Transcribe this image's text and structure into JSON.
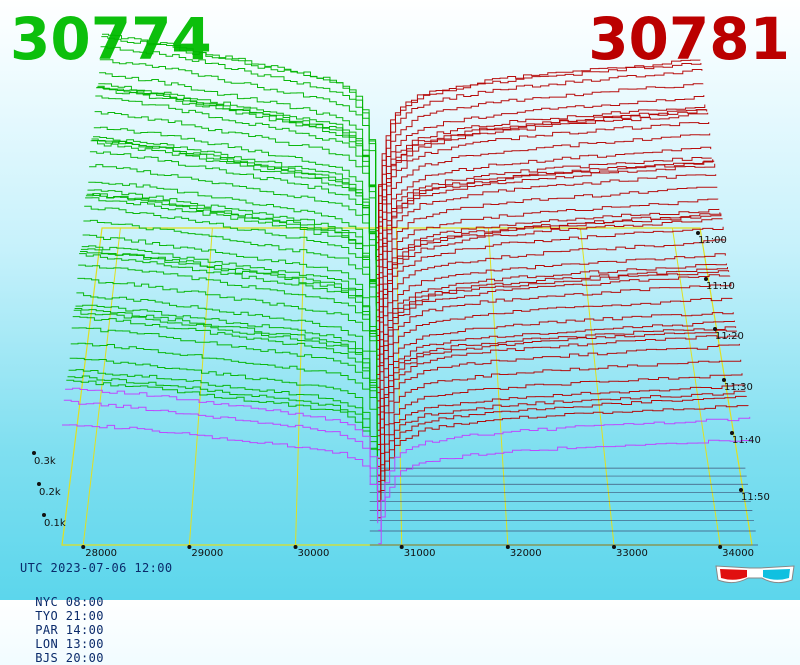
{
  "bid_price": "30774",
  "ask_price": "30781",
  "footer": {
    "utc": "UTC 2023-07-06 12:00",
    "timezones": [
      "NYC 08:00",
      "TYO 21:00",
      "PAR 14:00",
      "LON 13:00",
      "BJS 20:00"
    ]
  },
  "colors": {
    "bid": "#00b400",
    "ask": "#b40000",
    "grid": "#e0e020",
    "baseline": "#30305a",
    "front_bid": "#c040ff"
  },
  "icons": [
    "3d-glasses-icon"
  ],
  "chart_data": {
    "type": "area",
    "view": "3d-depth-chart",
    "x_axis": {
      "ticks": [
        28000,
        29000,
        30000,
        31000,
        32000,
        33000,
        34000
      ],
      "tick_labels": [
        "28000",
        "29000",
        "30000",
        "31000",
        "32000",
        "33000",
        "34000"
      ],
      "range": [
        27800,
        34300
      ]
    },
    "depth_axis": {
      "ticks": [
        100,
        200,
        300
      ],
      "tick_labels": [
        "0.1k",
        "0.2k",
        "0.3k"
      ]
    },
    "time_axis": {
      "ticks": [
        "11:00",
        "11:10",
        "11:20",
        "11:30",
        "11:40",
        "11:50"
      ]
    },
    "mid_price": 30777,
    "series": [
      {
        "side": "bid",
        "price_points": [
          27800,
          28500,
          29000,
          29500,
          30000,
          30400,
          30600,
          30700,
          30750,
          30774
        ],
        "cumulative_depth": [
          300,
          285,
          270,
          255,
          240,
          225,
          200,
          140,
          60,
          0
        ]
      },
      {
        "side": "ask",
        "price_points": [
          30781,
          30800,
          30850,
          30950,
          31200,
          31600,
          32000,
          32600,
          33200,
          33800,
          34300
        ],
        "cumulative_depth": [
          0,
          60,
          120,
          175,
          205,
          220,
          230,
          240,
          248,
          255,
          262
        ]
      }
    ]
  }
}
